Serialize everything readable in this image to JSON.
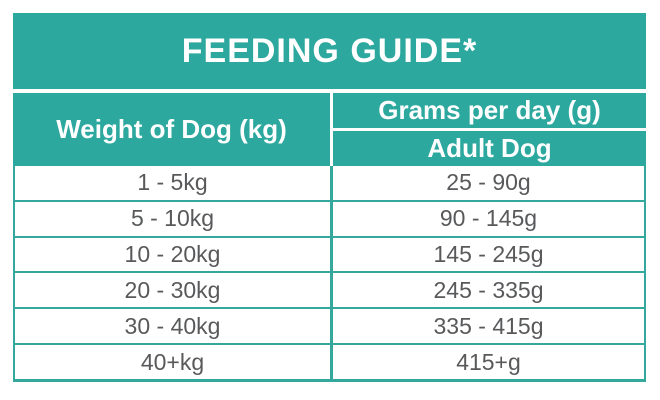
{
  "chart_data": {
    "type": "table",
    "title": "FEEDING GUIDE*",
    "col1_header": "Weight of Dog (kg)",
    "col2_group_header": "Grams per day (g)",
    "col2_sub_header": "Adult Dog",
    "rows": [
      [
        "1 - 5kg",
        "25 - 90g"
      ],
      [
        "5 - 10kg",
        "90 - 145g"
      ],
      [
        "10 - 20kg",
        "145 - 245g"
      ],
      [
        "20 - 30kg",
        "245 - 335g"
      ],
      [
        "30 - 40kg",
        "335 - 415g"
      ],
      [
        "40+kg",
        "415+g"
      ]
    ],
    "colors": {
      "teal_header": "#2CA89E",
      "border_teal": "#35A89E",
      "body_text": "#58595B",
      "header_text": "#FFFFFF",
      "background": "#FFFFFF"
    },
    "layout_hints": {
      "columns": 2,
      "grid": "on",
      "title_position": "top-banner"
    }
  }
}
